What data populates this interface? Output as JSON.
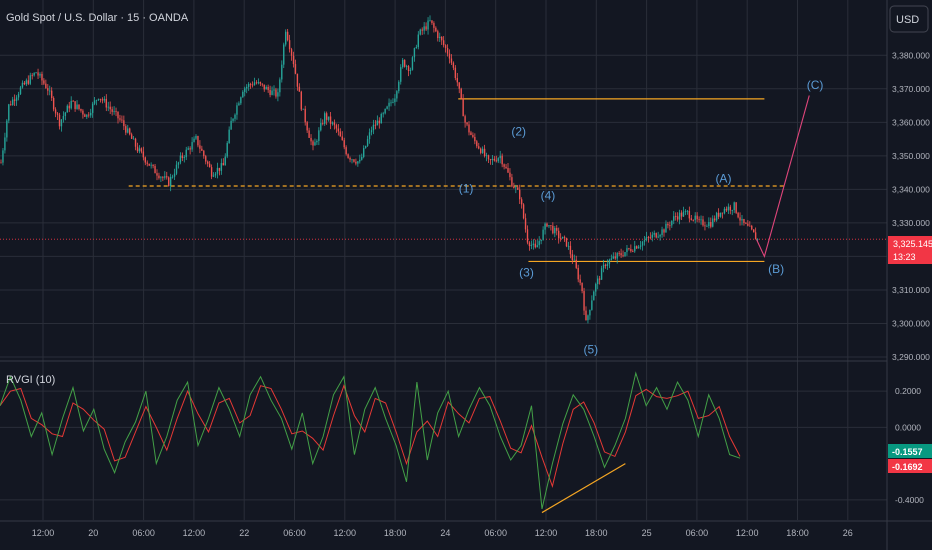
{
  "header": {
    "symbol_title": "Gold Spot / U.S. Dollar · 15 · OANDA",
    "currency_button": "USD"
  },
  "colors": {
    "background": "#131722",
    "grid": "#2a2e39",
    "up_candle": "#26a69a",
    "down_candle": "#ef5350",
    "orange_line": "#f5a623",
    "wave_label": "#5b9bd5",
    "projection_line": "#e0457b",
    "rvgi_line": "#43a047",
    "signal_line": "#e53935",
    "price_badge": "#f23645"
  },
  "chart_data": [
    {
      "type": "candlestick",
      "title": "Gold Spot / U.S. Dollar · 15 · OANDA",
      "ylim": [
        3290,
        3395
      ],
      "y_ticks": [
        "3,290.000",
        "3,300.000",
        "3,310.000",
        "3,320.000",
        "3,330.000",
        "3,340.000",
        "3,350.000",
        "3,360.000",
        "3,370.000",
        "3,380.000"
      ],
      "x_ticks": [
        "12:00",
        "20",
        "06:00",
        "12:00",
        "22",
        "06:00",
        "12:00",
        "18:00",
        "24",
        "06:00",
        "12:00",
        "18:00",
        "25",
        "06:00",
        "12:00",
        "18:00",
        "26"
      ],
      "close_path": [
        [
          0,
          3348
        ],
        [
          4,
          3365
        ],
        [
          10,
          3370
        ],
        [
          18,
          3375
        ],
        [
          24,
          3370
        ],
        [
          30,
          3360
        ],
        [
          36,
          3366
        ],
        [
          44,
          3362
        ],
        [
          50,
          3368
        ],
        [
          56,
          3364
        ],
        [
          62,
          3360
        ],
        [
          70,
          3352
        ],
        [
          78,
          3346
        ],
        [
          86,
          3342
        ],
        [
          92,
          3349
        ],
        [
          100,
          3355
        ],
        [
          108,
          3345
        ],
        [
          114,
          3347
        ],
        [
          118,
          3360
        ],
        [
          124,
          3370
        ],
        [
          130,
          3372
        ],
        [
          136,
          3370
        ],
        [
          142,
          3368
        ],
        [
          146,
          3388
        ],
        [
          150,
          3378
        ],
        [
          154,
          3365
        ],
        [
          160,
          3352
        ],
        [
          166,
          3362
        ],
        [
          172,
          3358
        ],
        [
          178,
          3350
        ],
        [
          184,
          3348
        ],
        [
          190,
          3358
        ],
        [
          196,
          3362
        ],
        [
          202,
          3368
        ],
        [
          206,
          3378
        ],
        [
          210,
          3376
        ],
        [
          214,
          3386
        ],
        [
          220,
          3390
        ],
        [
          226,
          3384
        ],
        [
          230,
          3380
        ],
        [
          234,
          3372
        ],
        [
          238,
          3360
        ],
        [
          242,
          3355
        ],
        [
          246,
          3352
        ],
        [
          250,
          3348
        ],
        [
          256,
          3350
        ],
        [
          262,
          3342
        ],
        [
          266,
          3338
        ],
        [
          270,
          3325
        ],
        [
          274,
          3322
        ],
        [
          280,
          3330
        ],
        [
          286,
          3326
        ],
        [
          290,
          3324
        ],
        [
          294,
          3318
        ],
        [
          298,
          3310
        ],
        [
          300,
          3300
        ],
        [
          304,
          3310
        ],
        [
          310,
          3318
        ],
        [
          316,
          3320
        ],
        [
          322,
          3322
        ],
        [
          328,
          3324
        ],
        [
          334,
          3326
        ],
        [
          340,
          3328
        ],
        [
          346,
          3332
        ],
        [
          352,
          3333
        ],
        [
          358,
          3330
        ],
        [
          364,
          3330
        ],
        [
          370,
          3334
        ],
        [
          376,
          3335
        ],
        [
          380,
          3330
        ],
        [
          384,
          3328
        ],
        [
          388,
          3325
        ]
      ],
      "total_bars": 388,
      "levels": [
        {
          "price": 3367,
          "style": "solid",
          "from": 235,
          "to": 392
        },
        {
          "price": 3341,
          "style": "dashed",
          "from": 66,
          "to": 403
        },
        {
          "price": 3318.5,
          "style": "solid",
          "from": 271,
          "to": 392
        }
      ],
      "current_price_line": 3325.145,
      "price_badge": {
        "price": "3,325.145",
        "timer": "13:23"
      },
      "wave_labels": [
        {
          "text": "(1)",
          "bar": 239,
          "price": 3339
        },
        {
          "text": "(2)",
          "bar": 266,
          "price": 3356
        },
        {
          "text": "(3)",
          "bar": 270,
          "price": 3314
        },
        {
          "text": "(4)",
          "bar": 281,
          "price": 3337
        },
        {
          "text": "(5)",
          "bar": 303,
          "price": 3291
        },
        {
          "text": "(A)",
          "bar": 371,
          "price": 3342
        },
        {
          "text": "(B)",
          "bar": 398,
          "price": 3315
        },
        {
          "text": "(C)",
          "bar": 418,
          "price": 3370
        }
      ],
      "projection": [
        [
          388,
          3325
        ],
        [
          392,
          3320
        ],
        [
          415,
          3368
        ]
      ]
    },
    {
      "type": "line",
      "title": "RVGI (10)",
      "ylim": [
        -0.5,
        0.35
      ],
      "y_ticks": [
        "0.2000",
        "0.0000",
        "-0.4000"
      ],
      "series": [
        {
          "name": "RVGI",
          "value_label": "-0.1557",
          "values": [
            0.12,
            0.28,
            0.15,
            -0.05,
            0.08,
            -0.15,
            0.05,
            0.22,
            -0.02,
            0.1,
            -0.12,
            -0.25,
            -0.08,
            0.03,
            0.2,
            -0.2,
            -0.05,
            0.15,
            0.25,
            -0.1,
            0.05,
            0.22,
            0.1,
            -0.05,
            0.18,
            0.28,
            0.15,
            0.05,
            -0.12,
            0.08,
            -0.2,
            -0.05,
            0.18,
            0.28,
            -0.15,
            0.1,
            0.22,
            0.05,
            -0.1,
            -0.3,
            0.25,
            -0.18,
            0.08,
            0.2,
            -0.05,
            0.1,
            0.22,
            0.12,
            -0.05,
            -0.18,
            -0.1,
            0.12,
            -0.45,
            -0.2,
            0.02,
            0.18,
            0.1,
            -0.05,
            -0.22,
            -0.1,
            0.05,
            0.3,
            0.12,
            0.22,
            0.1,
            0.25,
            0.15,
            -0.05,
            0.18,
            0.05,
            -0.15,
            -0.17
          ]
        },
        {
          "name": "Signal",
          "value_label": "-0.1692"
        }
      ],
      "divergence_line": [
        [
          52,
          -0.47
        ],
        [
          60,
          -0.2
        ]
      ]
    }
  ]
}
